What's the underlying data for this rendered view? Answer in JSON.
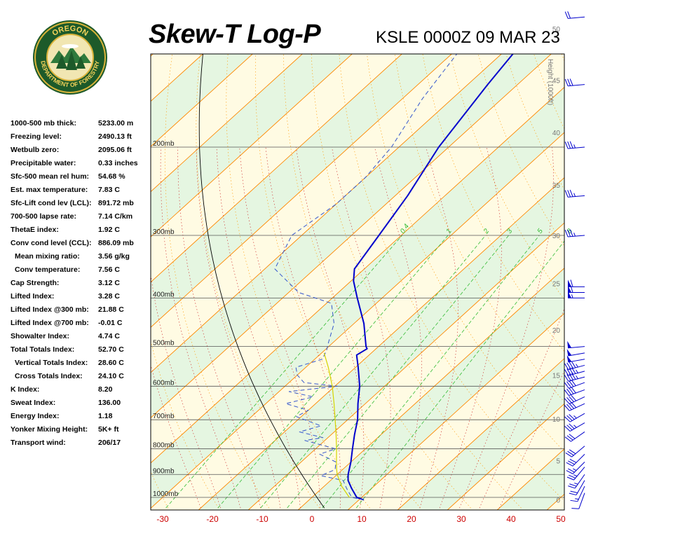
{
  "header": {
    "title": "Skew-T Log-P",
    "station_time": "KSLE 0000Z 09 MAR 23"
  },
  "logo": {
    "top_text": "OREGON",
    "bottom_text": "DEPARTMENT OF FORESTRY"
  },
  "indices": [
    {
      "label": "1000-500 mb thick:",
      "value": "5233.00 m",
      "indent": false
    },
    {
      "label": "Freezing level:",
      "value": "2490.13 ft",
      "indent": false
    },
    {
      "label": "Wetbulb zero:",
      "value": "2095.06 ft",
      "indent": false
    },
    {
      "label": "Precipitable water:",
      "value": "0.33 inches",
      "indent": false
    },
    {
      "label": "Sfc-500 mean rel hum:",
      "value": "54.68 %",
      "indent": false
    },
    {
      "label": "Est. max temperature:",
      "value": "7.83 C",
      "indent": false
    },
    {
      "label": "Sfc-Lift cond lev (LCL):",
      "value": "891.72 mb",
      "indent": false
    },
    {
      "label": "700-500 lapse rate:",
      "value": "7.14 C/km",
      "indent": false
    },
    {
      "label": "ThetaE index:",
      "value": "1.92 C",
      "indent": false
    },
    {
      "label": "Conv cond level (CCL):",
      "value": "886.09 mb",
      "indent": false
    },
    {
      "label": "Mean mixing ratio:",
      "value": "3.56 g/kg",
      "indent": true
    },
    {
      "label": "Conv temperature:",
      "value": "7.56 C",
      "indent": true
    },
    {
      "label": "Cap Strength:",
      "value": "3.12 C",
      "indent": false
    },
    {
      "label": "Lifted Index:",
      "value": "3.28 C",
      "indent": false
    },
    {
      "label": "Lifted Index @300 mb:",
      "value": "21.88 C",
      "indent": false
    },
    {
      "label": "Lifted Index @700 mb:",
      "value": "-0.01 C",
      "indent": false
    },
    {
      "label": "Showalter Index:",
      "value": "4.74 C",
      "indent": false
    },
    {
      "label": "Total Totals Index:",
      "value": "52.70 C",
      "indent": false
    },
    {
      "label": "Vertical Totals Index:",
      "value": "28.60 C",
      "indent": true
    },
    {
      "label": "Cross Totals Index:",
      "value": "24.10 C",
      "indent": true
    },
    {
      "label": "K Index:",
      "value": "8.20",
      "indent": false
    },
    {
      "label": "Sweat Index:",
      "value": "136.00",
      "indent": false
    },
    {
      "label": "Energy Index:",
      "value": "1.18",
      "indent": false
    },
    {
      "label": "Yonker Mixing Height:",
      "value": "5K+ ft",
      "indent": false
    },
    {
      "label": "Transport wind:",
      "value": "206/17",
      "indent": false
    }
  ],
  "colors": {
    "temperature": "#0000cc",
    "dewpoint": "#3355cc",
    "parcel": "#d4d400",
    "isotherm": "#ff8800",
    "dry_adiabat": "#ff9900",
    "moist_adiabat": "#cc2222",
    "mixing_ratio": "#33bb33",
    "isobar": "#555555",
    "band_yellow": "#fffbe3",
    "band_green": "#e5f6e1"
  },
  "chart_data": {
    "type": "line",
    "title": "Skew-T Log-P",
    "x_label": "",
    "y_label": "",
    "x_ticks": [
      -30,
      -20,
      -10,
      0,
      10,
      20,
      30,
      40,
      50
    ],
    "x_range": [
      -30,
      50
    ],
    "pressure_levels": [
      {
        "p": 1000,
        "label": "1000mb"
      },
      {
        "p": 900,
        "label": "900mb"
      },
      {
        "p": 800,
        "label": "800mb"
      },
      {
        "p": 700,
        "label": "700mb"
      },
      {
        "p": 600,
        "label": "600mb"
      },
      {
        "p": 500,
        "label": "500mb"
      },
      {
        "p": 400,
        "label": "400mb"
      },
      {
        "p": 300,
        "label": "300mb"
      },
      {
        "p": 200,
        "label": "200mb"
      }
    ],
    "height_axis": {
      "label": "Height (1000ft)",
      "ticks": [
        {
          "kft": 0,
          "p": 1012
        },
        {
          "kft": 5,
          "p": 845
        },
        {
          "kft": 10,
          "p": 697
        },
        {
          "kft": 15,
          "p": 570
        },
        {
          "kft": 20,
          "p": 463
        },
        {
          "kft": 25,
          "p": 374
        },
        {
          "kft": 30,
          "p": 300
        },
        {
          "kft": 35,
          "p": 238
        },
        {
          "kft": 40,
          "p": 187
        },
        {
          "kft": 45,
          "p": 147
        },
        {
          "kft": 50,
          "p": 116
        }
      ]
    },
    "mixing_ratio_labels": [
      "0.4",
      "1",
      "2",
      "3",
      "5",
      "8"
    ],
    "series": [
      {
        "key": "temperature",
        "points": [
          {
            "p": 1012,
            "t": 11.0
          },
          {
            "p": 1000,
            "t": 9.0
          },
          {
            "p": 960,
            "t": 6.0
          },
          {
            "p": 925,
            "t": 3.5
          },
          {
            "p": 900,
            "t": 2.2
          },
          {
            "p": 850,
            "t": 0.0
          },
          {
            "p": 800,
            "t": -2.6
          },
          {
            "p": 750,
            "t": -5.3
          },
          {
            "p": 700,
            "t": -8.0
          },
          {
            "p": 650,
            "t": -11.5
          },
          {
            "p": 600,
            "t": -15.0
          },
          {
            "p": 550,
            "t": -19.5
          },
          {
            "p": 520,
            "t": -22.5
          },
          {
            "p": 505,
            "t": -21.8
          },
          {
            "p": 500,
            "t": -22.5
          },
          {
            "p": 450,
            "t": -28.0
          },
          {
            "p": 400,
            "t": -35.0
          },
          {
            "p": 370,
            "t": -39.5
          },
          {
            "p": 350,
            "t": -42.0
          },
          {
            "p": 300,
            "t": -44.5
          },
          {
            "p": 250,
            "t": -47.5
          },
          {
            "p": 200,
            "t": -52.0
          },
          {
            "p": 150,
            "t": -56.0
          },
          {
            "p": 122,
            "t": -58.5
          }
        ]
      },
      {
        "key": "dewpoint",
        "points": [
          {
            "p": 1012,
            "t": 11.0
          },
          {
            "p": 1000,
            "t": 8.0
          },
          {
            "p": 960,
            "t": 5.0
          },
          {
            "p": 925,
            "t": 2.5
          },
          {
            "p": 905,
            "t": -3.0
          },
          {
            "p": 880,
            "t": -1.5
          },
          {
            "p": 850,
            "t": -3.0
          },
          {
            "p": 820,
            "t": -8.0
          },
          {
            "p": 800,
            "t": -6.0
          },
          {
            "p": 770,
            "t": -14.0
          },
          {
            "p": 760,
            "t": -11.0
          },
          {
            "p": 740,
            "t": -17.0
          },
          {
            "p": 720,
            "t": -14.0
          },
          {
            "p": 690,
            "t": -21.0
          },
          {
            "p": 670,
            "t": -20.0
          },
          {
            "p": 650,
            "t": -26.0
          },
          {
            "p": 630,
            "t": -22.0
          },
          {
            "p": 615,
            "t": -28.0
          },
          {
            "p": 600,
            "t": -19.5
          },
          {
            "p": 590,
            "t": -27.0
          },
          {
            "p": 570,
            "t": -30.0
          },
          {
            "p": 550,
            "t": -32.0
          },
          {
            "p": 530,
            "t": -28.5
          },
          {
            "p": 510,
            "t": -29.5
          },
          {
            "p": 490,
            "t": -31.0
          },
          {
            "p": 450,
            "t": -34.0
          },
          {
            "p": 410,
            "t": -39.0
          },
          {
            "p": 390,
            "t": -48.0
          },
          {
            "p": 350,
            "t": -58.0
          },
          {
            "p": 300,
            "t": -62.0
          },
          {
            "p": 260,
            "t": -60.0
          },
          {
            "p": 230,
            "t": -60.0
          },
          {
            "p": 200,
            "t": -61.5
          },
          {
            "p": 160,
            "t": -66.0
          },
          {
            "p": 130,
            "t": -69.0
          }
        ]
      },
      {
        "key": "parcel",
        "points": [
          {
            "p": 1000,
            "t": 7.5
          },
          {
            "p": 950,
            "t": 3.5
          },
          {
            "p": 900,
            "t": 0.0
          },
          {
            "p": 880,
            "t": -1.2
          },
          {
            "p": 850,
            "t": -2.9
          },
          {
            "p": 800,
            "t": -5.8
          },
          {
            "p": 750,
            "t": -9.0
          },
          {
            "p": 700,
            "t": -12.5
          },
          {
            "p": 650,
            "t": -16.3
          },
          {
            "p": 600,
            "t": -20.5
          },
          {
            "p": 550,
            "t": -25.5
          },
          {
            "p": 515,
            "t": -29.5
          }
        ]
      }
    ],
    "wind_barbs": [
      {
        "p": 980,
        "dir": 200,
        "spd": 10
      },
      {
        "p": 950,
        "dir": 205,
        "spd": 15
      },
      {
        "p": 925,
        "dir": 210,
        "spd": 20
      },
      {
        "p": 900,
        "dir": 215,
        "spd": 25
      },
      {
        "p": 870,
        "dir": 220,
        "spd": 25
      },
      {
        "p": 850,
        "dir": 225,
        "spd": 25
      },
      {
        "p": 820,
        "dir": 225,
        "spd": 30
      },
      {
        "p": 790,
        "dir": 230,
        "spd": 30
      },
      {
        "p": 740,
        "dir": 235,
        "spd": 30
      },
      {
        "p": 710,
        "dir": 240,
        "spd": 35
      },
      {
        "p": 680,
        "dir": 240,
        "spd": 35
      },
      {
        "p": 650,
        "dir": 245,
        "spd": 40
      },
      {
        "p": 630,
        "dir": 245,
        "spd": 40
      },
      {
        "p": 610,
        "dir": 250,
        "spd": 40
      },
      {
        "p": 590,
        "dir": 250,
        "spd": 40
      },
      {
        "p": 575,
        "dir": 255,
        "spd": 45
      },
      {
        "p": 560,
        "dir": 255,
        "spd": 45
      },
      {
        "p": 545,
        "dir": 255,
        "spd": 45
      },
      {
        "p": 530,
        "dir": 260,
        "spd": 50
      },
      {
        "p": 515,
        "dir": 260,
        "spd": 50
      },
      {
        "p": 500,
        "dir": 265,
        "spd": 50
      },
      {
        "p": 400,
        "dir": 270,
        "spd": 55
      },
      {
        "p": 390,
        "dir": 270,
        "spd": 60
      },
      {
        "p": 380,
        "dir": 270,
        "spd": 60
      },
      {
        "p": 300,
        "dir": 265,
        "spd": 35
      },
      {
        "p": 250,
        "dir": 265,
        "spd": 35
      },
      {
        "p": 200,
        "dir": 265,
        "spd": 35
      },
      {
        "p": 150,
        "dir": 265,
        "spd": 30
      },
      {
        "p": 110,
        "dir": 265,
        "spd": 20
      }
    ]
  }
}
